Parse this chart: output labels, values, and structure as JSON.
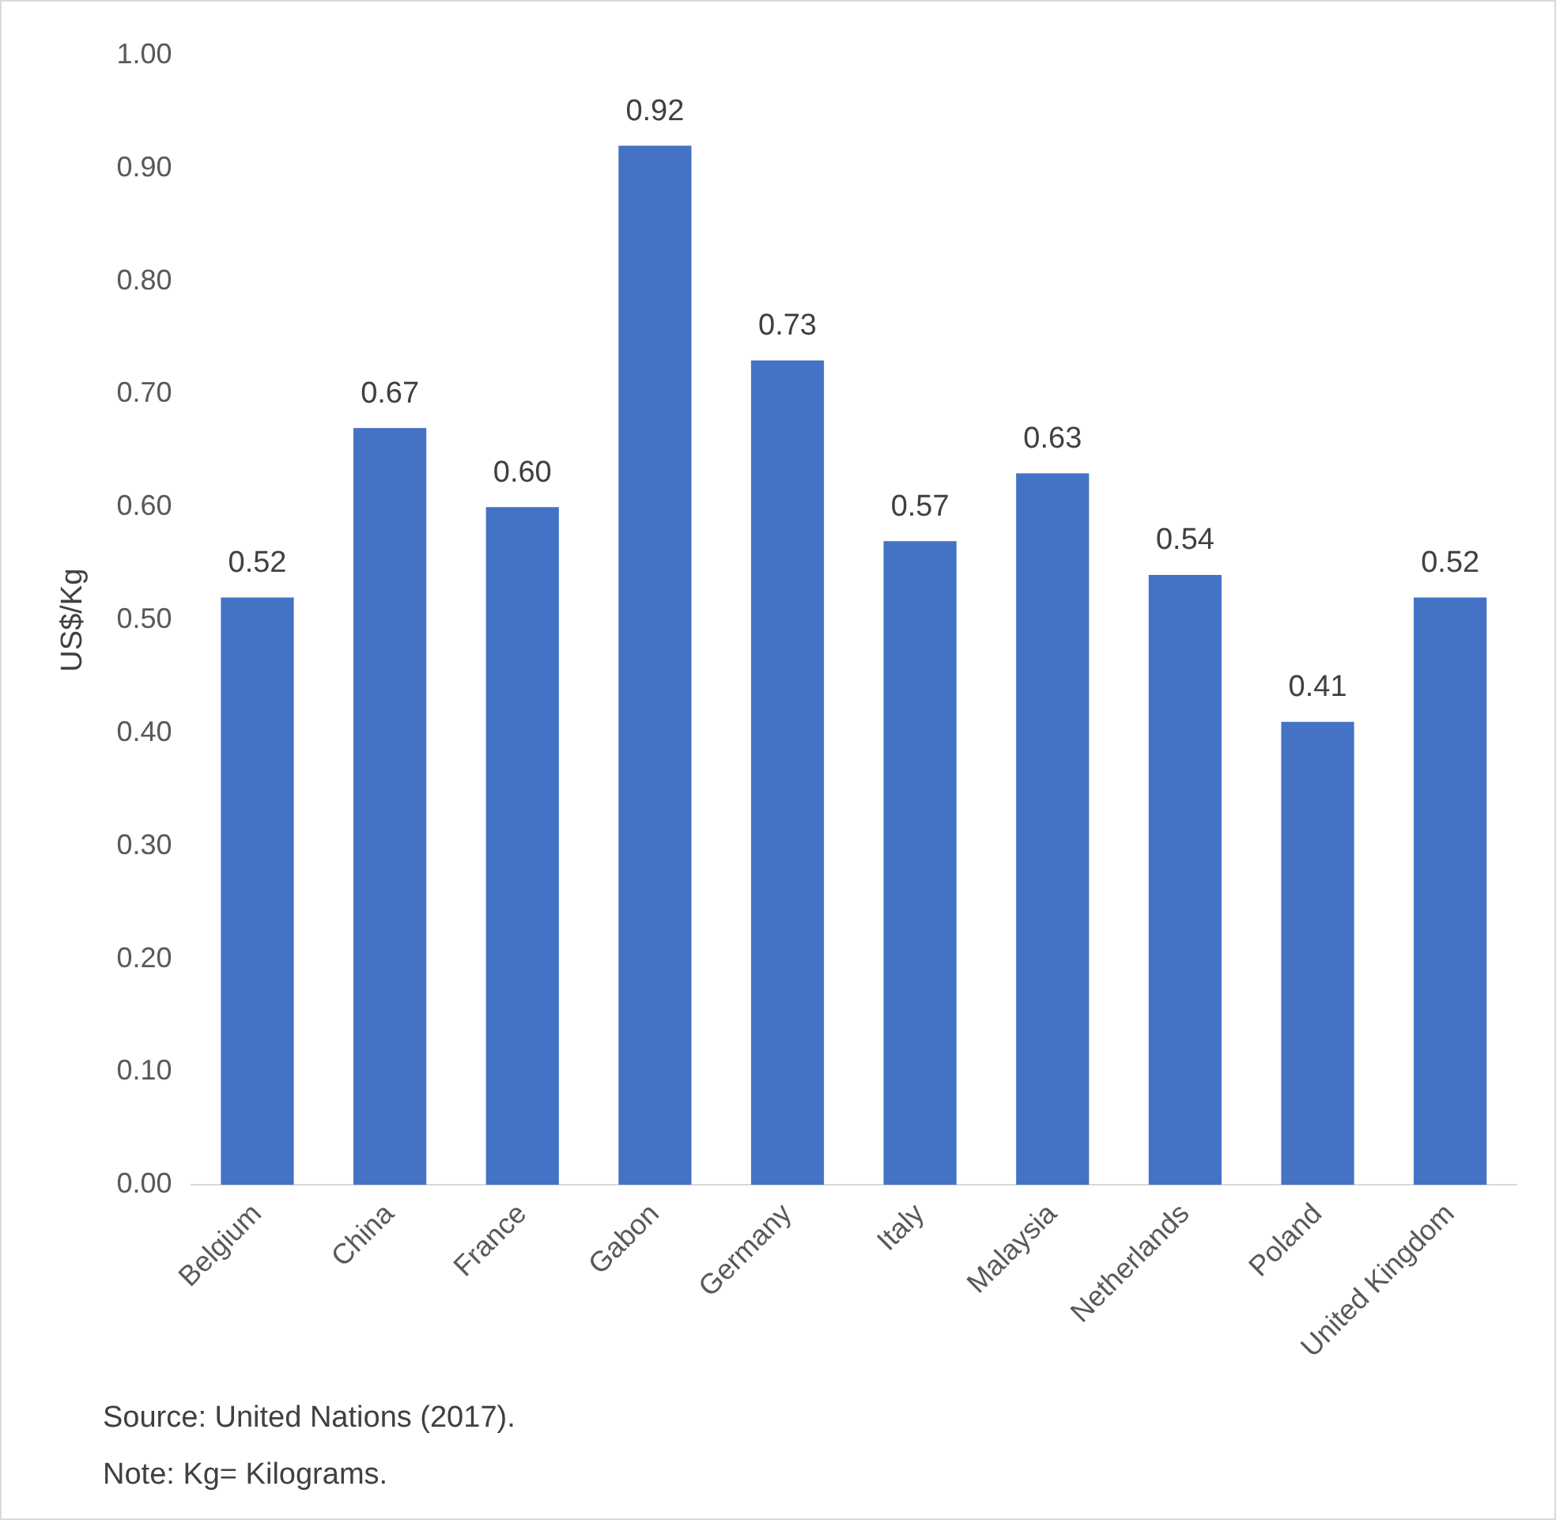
{
  "chart_data": {
    "type": "bar",
    "ylabel": "US$/Kg",
    "categories": [
      "Belgium",
      "China",
      "France",
      "Gabon",
      "Germany",
      "Italy",
      "Malaysia",
      "Netherlands",
      "Poland",
      "United Kingdom"
    ],
    "values": [
      0.52,
      0.67,
      0.6,
      0.92,
      0.73,
      0.57,
      0.63,
      0.54,
      0.41,
      0.52
    ],
    "value_labels": [
      "0.52",
      "0.67",
      "0.60",
      "0.92",
      "0.73",
      "0.57",
      "0.63",
      "0.54",
      "0.41",
      "0.52"
    ],
    "color": "#4472c4",
    "ylim": [
      0,
      1
    ],
    "yticks": [
      {
        "value": 0,
        "label": "0.00"
      },
      {
        "value": 0.1,
        "label": "0.10"
      },
      {
        "value": 0.2,
        "label": "0.20"
      },
      {
        "value": 0.3,
        "label": "0.30"
      },
      {
        "value": 0.4,
        "label": "0.40"
      },
      {
        "value": 0.5,
        "label": "0.50"
      },
      {
        "value": 0.6,
        "label": "0.60"
      },
      {
        "value": 0.7,
        "label": "0.70"
      },
      {
        "value": 0.8,
        "label": "0.80"
      },
      {
        "value": 0.9,
        "label": "0.90"
      },
      {
        "value": 1,
        "label": "1.00"
      }
    ],
    "annotations": [
      "Source: United Nations (2017).",
      "Note: Kg= Kilograms."
    ]
  }
}
